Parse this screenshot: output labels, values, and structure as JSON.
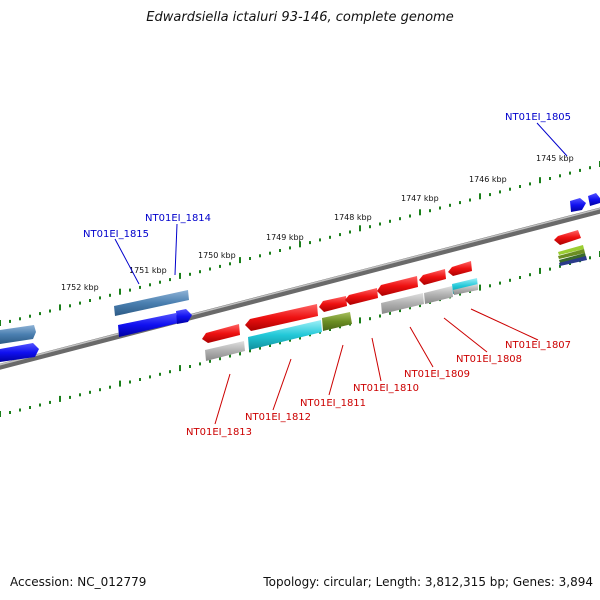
{
  "title": "Edwardsiella ictaluri 93-146, complete genome",
  "footer": {
    "accession": "Accession: NC_012779",
    "summary": "Topology: circular; Length: 3,812,315 bp; Genes: 3,894"
  },
  "ticks": [
    "1745 kbp",
    "1746 kbp",
    "1747 kbp",
    "1748 kbp",
    "1749 kbp",
    "1750 kbp",
    "1751 kbp",
    "1752 kbp"
  ],
  "labels_top": [
    "NT01EI_1805",
    "NT01EI_1814",
    "NT01EI_1815"
  ],
  "labels_bottom": [
    "NT01EI_1807",
    "NT01EI_1808",
    "NT01EI_1809",
    "NT01EI_1810",
    "NT01EI_1811",
    "NT01EI_1812",
    "NT01EI_1813"
  ],
  "colors": {
    "backbone": "#808080",
    "tick": "#1a7f1a",
    "forward_gene": "#1010f0",
    "forward_cds": "#4a7fb0",
    "reverse_gene": "#ee1111",
    "reverse_cds": "#b0b0b0",
    "teal_cds": "#22c8d8",
    "olive_cds": "#6b8e23",
    "label_top": "#0000cc",
    "label_bottom": "#cc0000"
  }
}
